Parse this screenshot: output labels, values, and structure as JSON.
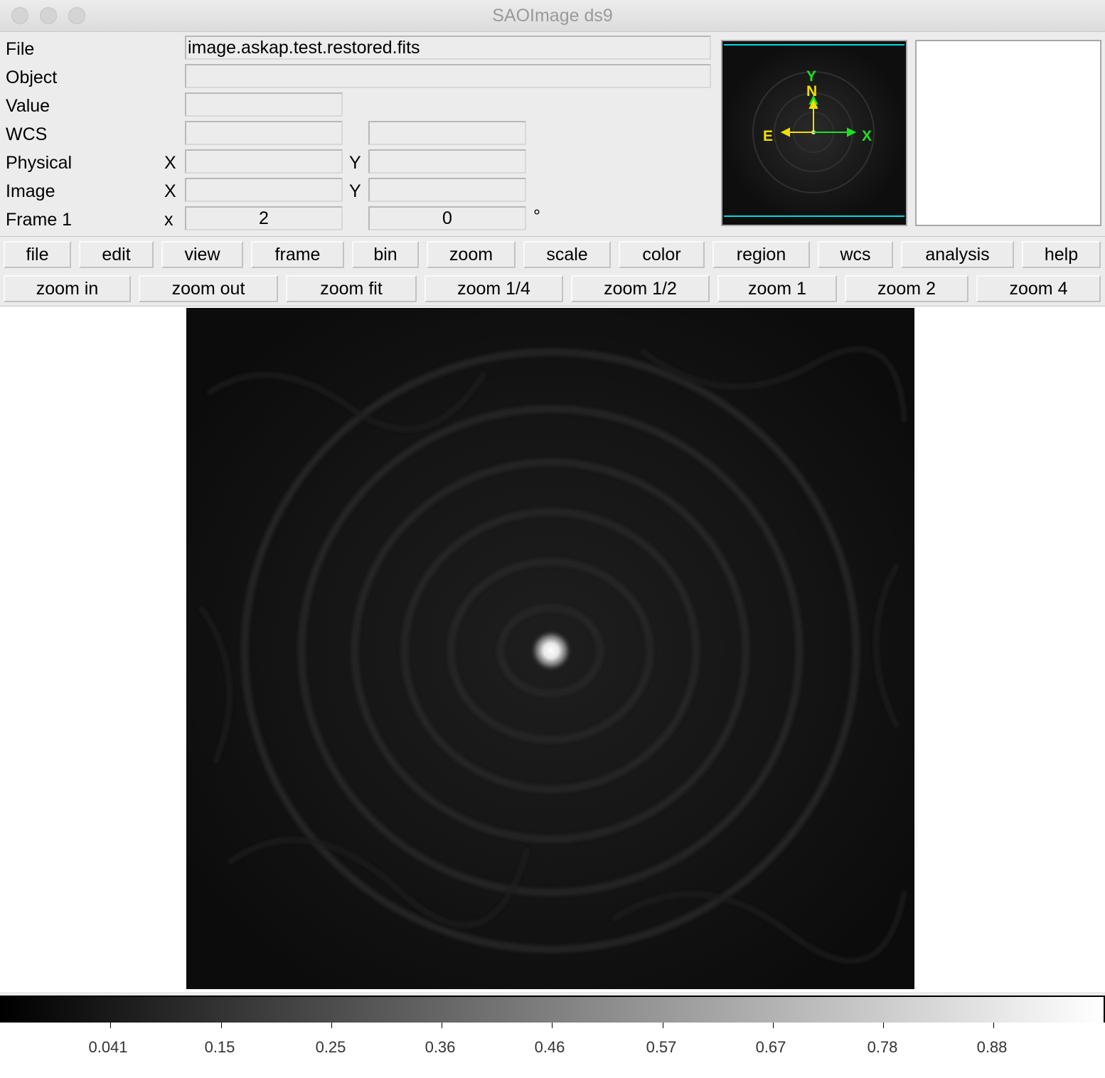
{
  "window": {
    "title": "SAOImage ds9"
  },
  "info": {
    "labels": {
      "file": "File",
      "object": "Object",
      "value": "Value",
      "wcs": "WCS",
      "physical": "Physical",
      "image": "Image",
      "frame": "Frame 1"
    },
    "axis_labels": {
      "physical_x": "X",
      "physical_y": "Y",
      "image_x": "X",
      "image_y": "Y",
      "frame_x": "x"
    },
    "file_value": "image.askap.test.restored.fits",
    "object_value": "",
    "value_value": "",
    "wcs_value_1": "",
    "wcs_value_2": "",
    "physical_x_value": "",
    "physical_y_value": "",
    "image_x_value": "",
    "image_y_value": "",
    "frame_zoom_value": "2",
    "frame_angle_value": "0",
    "degree_symbol": "°"
  },
  "panner": {
    "compass": {
      "north": "N",
      "east": "E",
      "x_axis": "X",
      "y_axis": "Y"
    },
    "colors": {
      "compass": "#f0e000",
      "axes": "#20e020",
      "bbox": "#00d8e0"
    }
  },
  "menu_bar": {
    "items": [
      "file",
      "edit",
      "view",
      "frame",
      "bin",
      "zoom",
      "scale",
      "color",
      "region",
      "wcs",
      "analysis",
      "help"
    ]
  },
  "button_bar": {
    "items": [
      "zoom in",
      "zoom out",
      "zoom fit",
      "zoom 1/4",
      "zoom 1/2",
      "zoom 1",
      "zoom 2",
      "zoom 4"
    ]
  },
  "colorbar": {
    "tick_labels": [
      "0.041",
      "0.15",
      "0.25",
      "0.36",
      "0.46",
      "0.57",
      "0.67",
      "0.78",
      "0.88"
    ]
  }
}
